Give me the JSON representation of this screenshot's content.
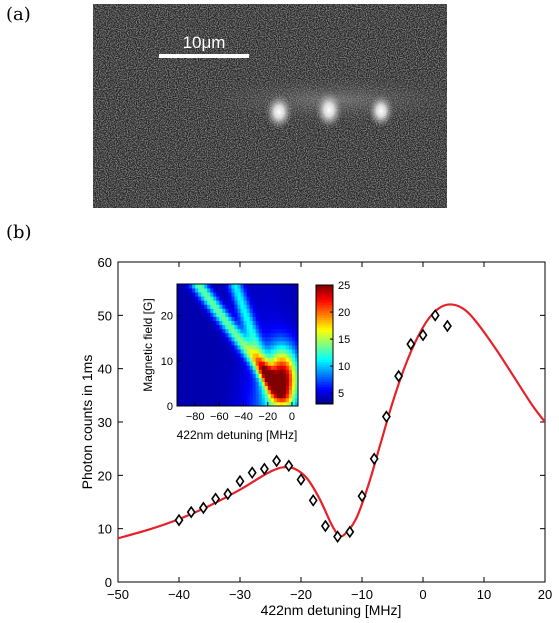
{
  "panels": {
    "a_label": "(a)",
    "b_label": "(b)"
  },
  "micrograph": {
    "scale_label": "10μm",
    "description_spots": 3
  },
  "chart_data": [
    {
      "type": "scatter",
      "title": "",
      "xlabel": "422nm detuning [MHz]",
      "ylabel": "Photon counts in 1ms",
      "xlim": [
        -50,
        20
      ],
      "ylim": [
        0,
        60
      ],
      "xticks": [
        -50,
        -40,
        -30,
        -20,
        -10,
        0,
        10,
        20
      ],
      "yticks": [
        0,
        10,
        20,
        30,
        40,
        50,
        60
      ],
      "grid": false,
      "series": [
        {
          "marker": "diamond",
          "color": "#000000",
          "x": [
            -40,
            -38,
            -36,
            -34,
            -32,
            -30,
            -28,
            -26,
            -24,
            -22,
            -20,
            -18,
            -16,
            -14,
            -12,
            -10,
            -8,
            -6,
            -4,
            -2,
            0,
            2,
            4
          ],
          "y": [
            11.6,
            13.1,
            13.9,
            15.6,
            16.5,
            18.9,
            20.5,
            21.2,
            22.7,
            21.8,
            19.2,
            15.3,
            10.5,
            8.5,
            9.4,
            16.1,
            23.1,
            31.0,
            38.6,
            44.6,
            46.3,
            50.0,
            48.0
          ]
        },
        {
          "type": "line",
          "color": "#e8202a",
          "x": [
            -50,
            -45,
            -40,
            -35,
            -30,
            -27,
            -25,
            -23,
            -21,
            -19,
            -17,
            -15,
            -14,
            -13,
            -11,
            -9,
            -7,
            -5,
            -3,
            -1,
            1,
            3,
            5,
            7,
            9,
            12,
            15,
            18,
            20
          ],
          "y": [
            8.2,
            9.8,
            11.8,
            14.3,
            17.3,
            19.4,
            20.7,
            21.5,
            21.2,
            19.4,
            15.7,
            10.8,
            9.0,
            8.8,
            11.8,
            18.0,
            25.8,
            33.6,
            40.3,
            45.6,
            49.5,
            51.6,
            52.0,
            50.9,
            48.4,
            43.6,
            38.3,
            33.0,
            30.0
          ]
        }
      ]
    },
    {
      "type": "heatmap",
      "title": "",
      "xlabel": "422nm detuning [MHz]",
      "ylabel": "Magnetic field [G]",
      "xlim": [
        -95,
        5
      ],
      "ylim": [
        0,
        27
      ],
      "xticks": [
        -80,
        -60,
        -40,
        -20,
        0
      ],
      "yticks": [
        0,
        10,
        20
      ],
      "colorbar": {
        "range": [
          3,
          25
        ],
        "ticks": [
          5,
          10,
          15,
          20,
          25
        ],
        "colormap": "jet"
      }
    }
  ]
}
